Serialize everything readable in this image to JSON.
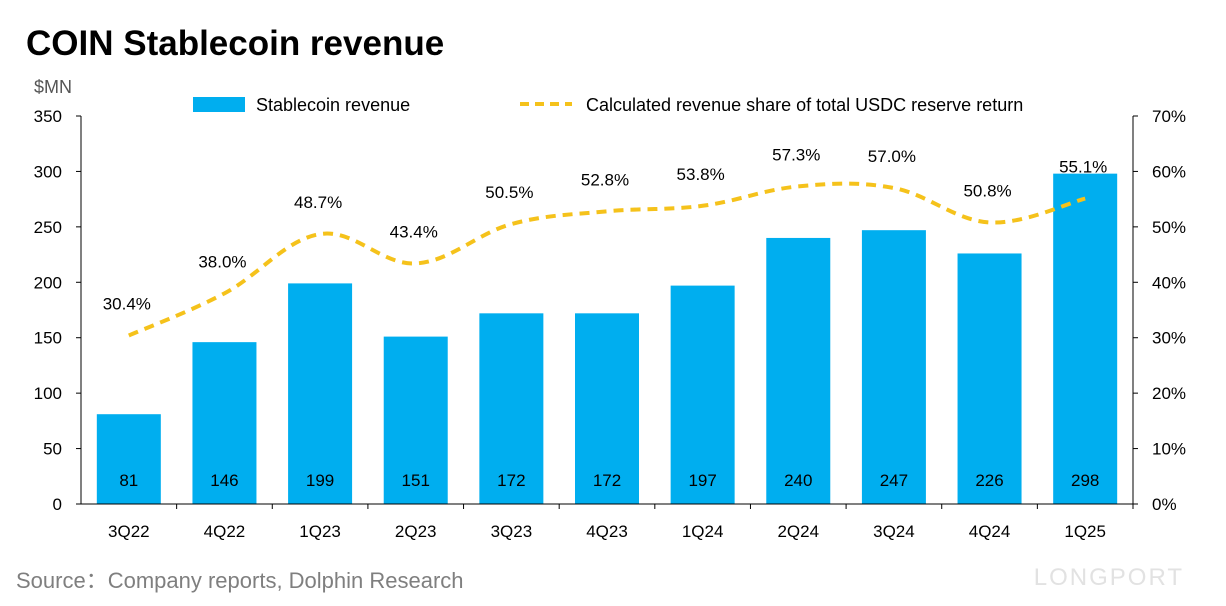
{
  "chart_data": {
    "type": "bar",
    "title": "COIN Stablecoin revenue",
    "ylabel": "$MN",
    "categories": [
      "3Q22",
      "4Q22",
      "1Q23",
      "2Q23",
      "3Q23",
      "4Q23",
      "1Q24",
      "2Q24",
      "3Q24",
      "4Q24",
      "1Q25"
    ],
    "series": [
      {
        "name": "Stablecoin revenue",
        "kind": "bar",
        "axis": "left",
        "color": "#00AEEF",
        "values": [
          81,
          146,
          199,
          151,
          172,
          172,
          197,
          240,
          247,
          226,
          298
        ],
        "labels": [
          "81",
          "146",
          "199",
          "151",
          "172",
          "172",
          "197",
          "240",
          "247",
          "226",
          "298"
        ]
      },
      {
        "name": "Calculated revenue share of total USDC reserve return",
        "kind": "line",
        "axis": "right",
        "style": "dashed",
        "color": "#F5C21B",
        "values": [
          30.4,
          38.0,
          48.7,
          43.4,
          50.5,
          52.8,
          53.8,
          57.3,
          57.0,
          50.8,
          55.1
        ],
        "labels": [
          "30.4%",
          "38.0%",
          "48.7%",
          "43.4%",
          "50.5%",
          "52.8%",
          "53.8%",
          "57.3%",
          "57.0%",
          "50.8%",
          "55.1%"
        ]
      }
    ],
    "ylim": [
      0,
      350
    ],
    "yticks": [
      0,
      50,
      100,
      150,
      200,
      250,
      300,
      350
    ],
    "ytick_labels": [
      "0",
      "50",
      "100",
      "150",
      "200",
      "250",
      "300",
      "350"
    ],
    "y2lim": [
      0,
      70
    ],
    "y2ticks": [
      0,
      10,
      20,
      30,
      40,
      50,
      60,
      70
    ],
    "y2tick_labels": [
      "0%",
      "10%",
      "20%",
      "30%",
      "40%",
      "50%",
      "60%",
      "70%"
    ],
    "legend_position": "top"
  },
  "footer": {
    "source": "Source：Company reports, Dolphin Research",
    "watermark": "LONGPORT"
  }
}
